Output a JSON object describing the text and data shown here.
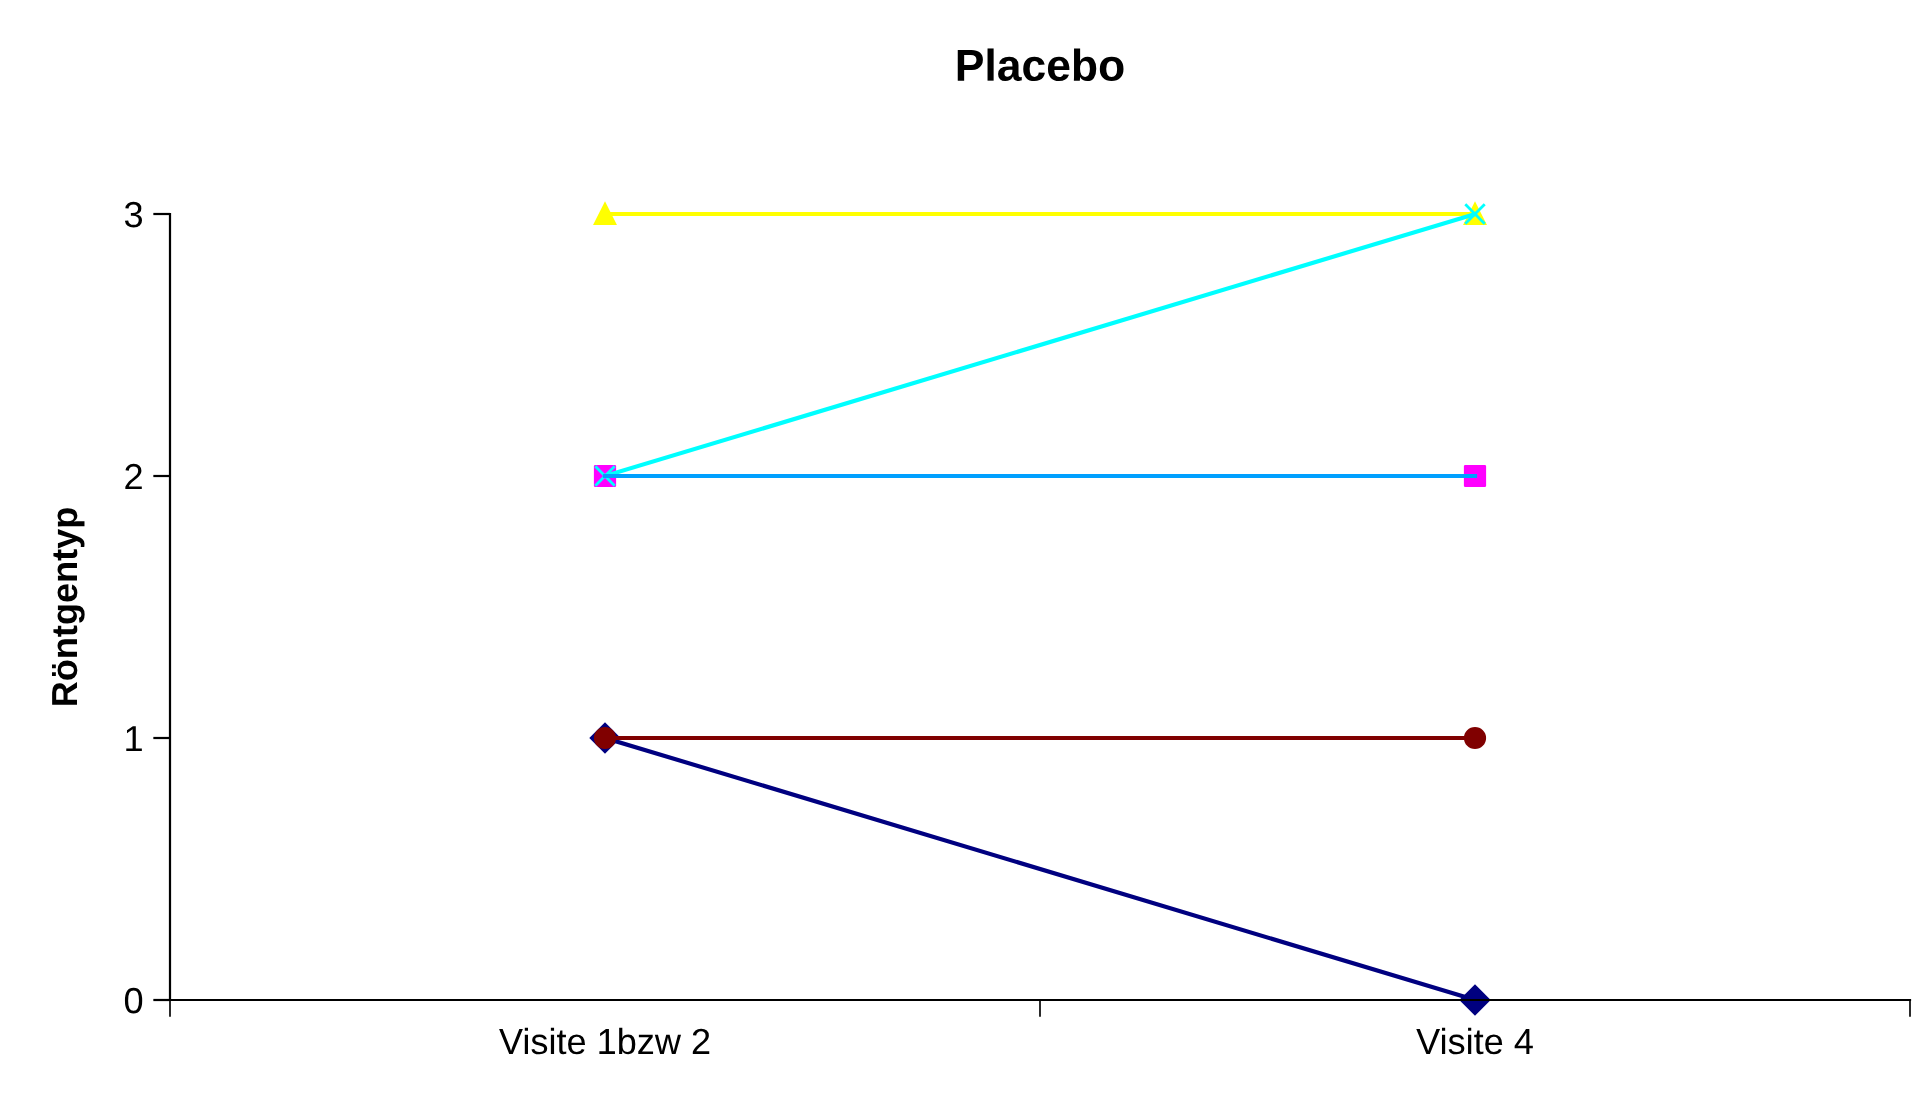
{
  "chart_data": {
    "type": "line",
    "title": "Placebo",
    "ylabel": "Röntgentyp",
    "categories": [
      "Visite 1bzw 2",
      "Visite 4"
    ],
    "series": [
      {
        "color": "#000080",
        "marker": "diamond",
        "values": [
          1,
          0
        ]
      },
      {
        "type": "scatter",
        "color": "#ff00ff",
        "marker": "square",
        "values": [
          2,
          2
        ]
      },
      {
        "color": "#ffff00",
        "marker": "triangle",
        "values": [
          3,
          3
        ]
      },
      {
        "color": "#00ffff",
        "marker": "cross",
        "values": [
          2,
          3
        ]
      },
      {
        "color": "#800000",
        "marker": "circle",
        "values": [
          1,
          1
        ]
      },
      {
        "color": "#00a0ff",
        "values": [
          2,
          2
        ]
      }
    ],
    "ylim": [
      0,
      3
    ],
    "yticks": [
      0,
      1,
      2,
      3
    ],
    "grid": false,
    "legend": false
  }
}
